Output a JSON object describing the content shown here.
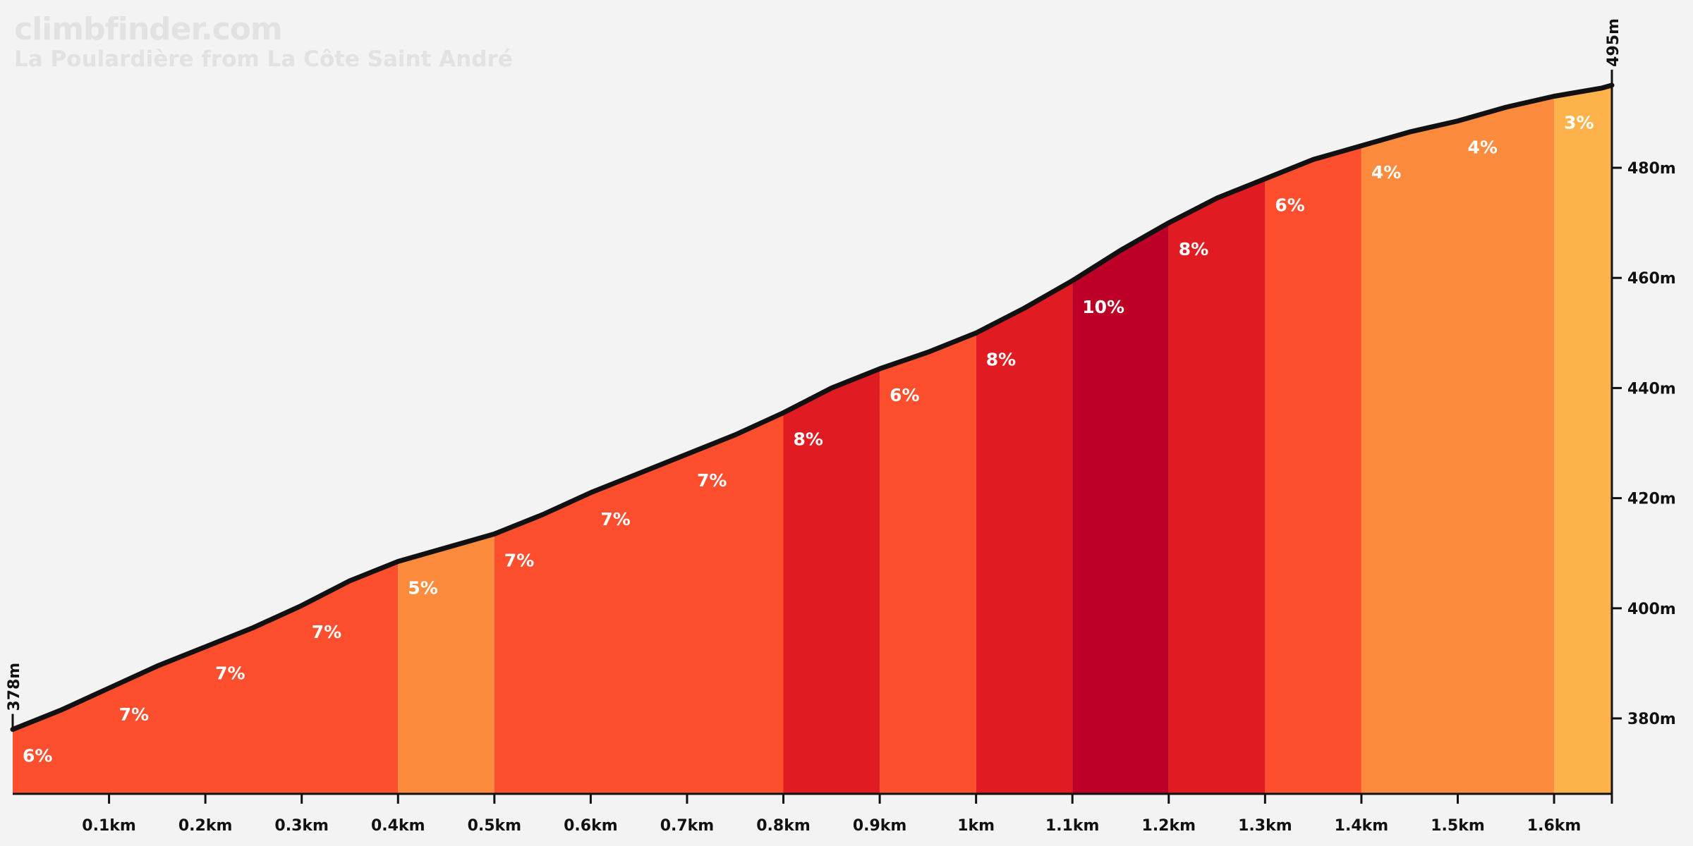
{
  "header": {
    "site": "climbfinder.com",
    "climb_name": "La Poulardière from La Côte Saint André"
  },
  "chart_data": {
    "type": "area",
    "title": "La Poulardière from La Côte Saint André",
    "xlabel": "",
    "ylabel": "",
    "x_unit": "km",
    "y_unit": "m",
    "xlim": [
      0,
      1.66
    ],
    "ylim": [
      265,
      500
    ],
    "x_ticks": [
      "0.1km",
      "0.2km",
      "0.3km",
      "0.4km",
      "0.5km",
      "0.6km",
      "0.7km",
      "0.8km",
      "0.9km",
      "1km",
      "1.1km",
      "1.2km",
      "1.3km",
      "1.4km",
      "1.5km",
      "1.6km"
    ],
    "y_ticks": [
      "380m",
      "400m",
      "420m",
      "440m",
      "460m",
      "480m"
    ],
    "start_elevation_label": "378m",
    "end_elevation_label": "495m",
    "profile": {
      "x": [
        0,
        0.05,
        0.1,
        0.15,
        0.2,
        0.25,
        0.3,
        0.35,
        0.4,
        0.45,
        0.5,
        0.55,
        0.6,
        0.65,
        0.7,
        0.75,
        0.8,
        0.85,
        0.9,
        0.95,
        1.0,
        1.05,
        1.1,
        1.15,
        1.2,
        1.25,
        1.3,
        1.35,
        1.4,
        1.45,
        1.5,
        1.55,
        1.6,
        1.65,
        1.66
      ],
      "y": [
        378,
        381.5,
        385.5,
        389.5,
        393,
        396.5,
        400.5,
        405,
        408.5,
        411,
        413.5,
        417,
        421,
        424.5,
        428,
        431.5,
        435.5,
        440,
        443.5,
        446.5,
        450,
        454.5,
        459.5,
        465,
        470,
        474.5,
        478,
        481.5,
        484,
        486.5,
        488.5,
        491,
        493,
        494.5,
        495
      ]
    },
    "segments": [
      {
        "start": 0.0,
        "end": 0.4,
        "grade": "7%",
        "color": "#fd4e2e"
      },
      {
        "start": 0.4,
        "end": 0.5,
        "grade": "5%",
        "color": "#fd8b3d"
      },
      {
        "start": 0.5,
        "end": 0.8,
        "grade": "7%",
        "color": "#fd4e2e"
      },
      {
        "start": 0.8,
        "end": 0.9,
        "grade": "8%",
        "color": "#e11b22"
      },
      {
        "start": 0.9,
        "end": 1.0,
        "grade": "6%",
        "color": "#fd4e2e"
      },
      {
        "start": 1.0,
        "end": 1.1,
        "grade": "8%",
        "color": "#e11b22"
      },
      {
        "start": 1.1,
        "end": 1.2,
        "grade": "10%",
        "color": "#bd0026"
      },
      {
        "start": 1.2,
        "end": 1.3,
        "grade": "8%",
        "color": "#e11b22"
      },
      {
        "start": 1.3,
        "end": 1.4,
        "grade": "6%",
        "color": "#fd4e2e"
      },
      {
        "start": 1.4,
        "end": 1.6,
        "grade": "4%",
        "color": "#fd8b3d"
      },
      {
        "start": 1.6,
        "end": 1.66,
        "grade": "3%",
        "color": "#feb24c"
      }
    ],
    "grade_labels": [
      {
        "x": 0.0,
        "label": "6%"
      },
      {
        "x": 0.1,
        "label": "7%"
      },
      {
        "x": 0.2,
        "label": "7%"
      },
      {
        "x": 0.3,
        "label": "7%"
      },
      {
        "x": 0.4,
        "label": "5%"
      },
      {
        "x": 0.5,
        "label": "7%"
      },
      {
        "x": 0.6,
        "label": "7%"
      },
      {
        "x": 0.7,
        "label": "7%"
      },
      {
        "x": 0.8,
        "label": "8%"
      },
      {
        "x": 0.9,
        "label": "6%"
      },
      {
        "x": 1.0,
        "label": "8%"
      },
      {
        "x": 1.1,
        "label": "10%"
      },
      {
        "x": 1.2,
        "label": "8%"
      },
      {
        "x": 1.3,
        "label": "6%"
      },
      {
        "x": 1.4,
        "label": "4%"
      },
      {
        "x": 1.5,
        "label": "4%"
      },
      {
        "x": 1.6,
        "label": "3%"
      }
    ],
    "grid": false,
    "legend": "none",
    "colors": {
      "background": "#f3f3f3",
      "profile_line": "#111111",
      "axis": "#111111"
    }
  }
}
